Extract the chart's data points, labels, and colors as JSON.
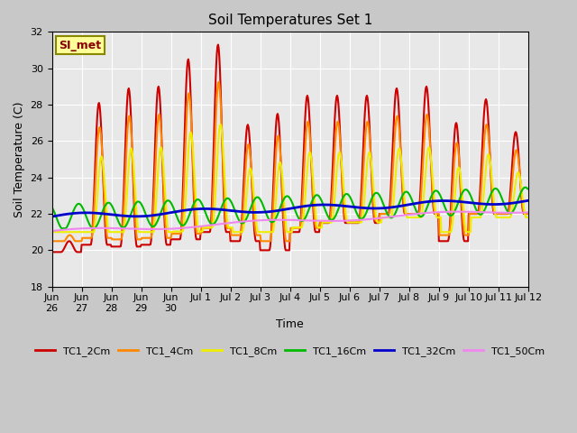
{
  "title": "Soil Temperatures Set 1",
  "xlabel": "Time",
  "ylabel": "Soil Temperature (C)",
  "ylim": [
    18,
    32
  ],
  "background_color": "#e8e8e8",
  "annotation_text": "SI_met",
  "annotation_bg": "#ffff99",
  "annotation_border": "#888800",
  "annotation_text_color": "#880000",
  "x_tick_labels": [
    "Jun\n26",
    "Jun\n27",
    "Jun\n28",
    "Jun\n29",
    "Jun\n30",
    "Jul 1",
    "Jul 2",
    "Jul 3",
    "Jul 4",
    "Jul 5",
    "Jul 6",
    "Jul 7",
    "Jul 8",
    "Jul 9",
    "Jul 10",
    "Jul 11",
    "Jul 12"
  ],
  "yticks": [
    18,
    20,
    22,
    24,
    26,
    28,
    30,
    32
  ],
  "series_names": [
    "TC1_2Cm",
    "TC1_4Cm",
    "TC1_8Cm",
    "TC1_16Cm",
    "TC1_32Cm",
    "TC1_50Cm"
  ],
  "series_colors": [
    "#cc0000",
    "#ff8800",
    "#eeee00",
    "#00bb00",
    "#0000cc",
    "#ee88ee"
  ],
  "series_lw": [
    1.5,
    1.5,
    1.5,
    1.5,
    2.0,
    1.5
  ]
}
